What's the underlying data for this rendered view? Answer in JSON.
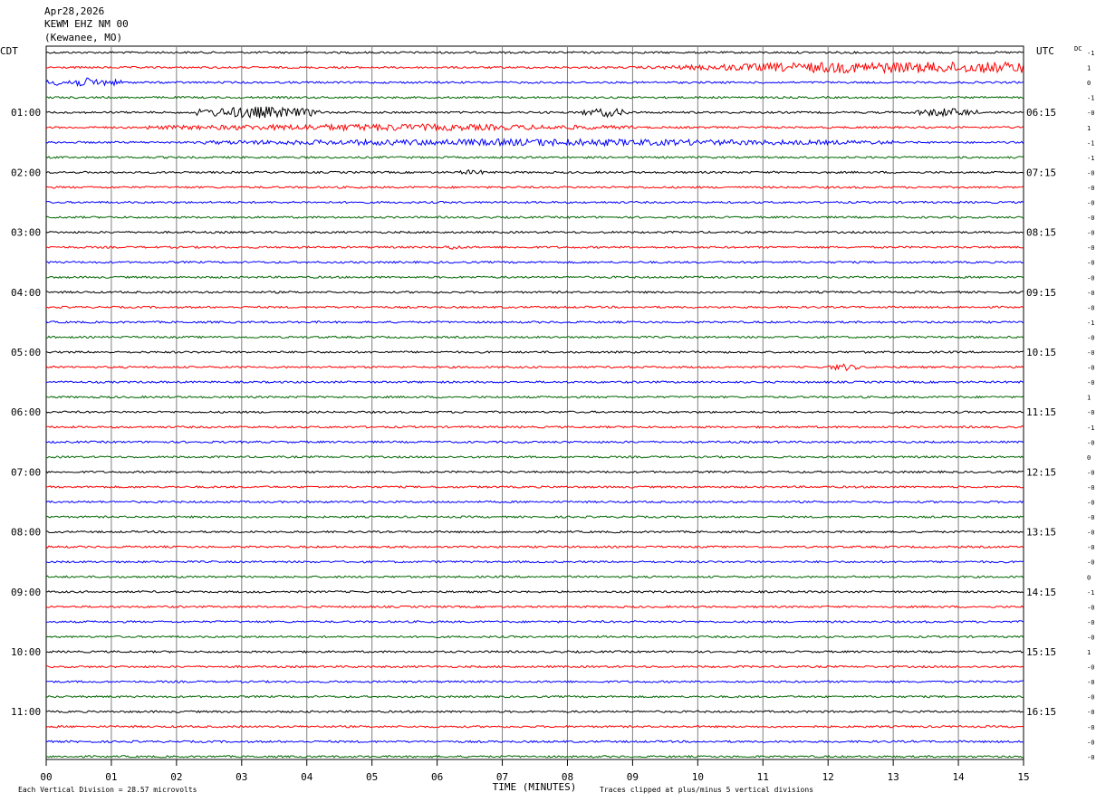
{
  "header": {
    "date": "Apr28,2026",
    "station": "KEWM EHZ NM 00",
    "location": "(Kewanee, MO)"
  },
  "chart_data": {
    "type": "line",
    "left_timezone": "CDT",
    "right_timezone": "UTC",
    "dc_label": "DC",
    "xlabel": "TIME (MINUTES)",
    "x_ticks": [
      "00",
      "01",
      "02",
      "03",
      "04",
      "05",
      "06",
      "07",
      "08",
      "09",
      "10",
      "11",
      "12",
      "13",
      "14",
      "15"
    ],
    "xlim": [
      0,
      15
    ],
    "left_hour_labels": [
      "01:00",
      "02:00",
      "03:00",
      "04:00",
      "05:00",
      "06:00",
      "07:00",
      "08:00",
      "09:00",
      "10:00",
      "11:00"
    ],
    "right_hour_labels": [
      "06:15",
      "07:15",
      "08:15",
      "09:15",
      "10:15",
      "11:15",
      "12:15",
      "13:15",
      "14:15",
      "15:15",
      "16:15"
    ],
    "trace_count": 48,
    "trace_colors": [
      "#000000",
      "#ff0000",
      "#0000ff",
      "#006600"
    ],
    "dc_offsets": [
      "-1",
      "1",
      "0",
      "-1",
      "-0",
      "1",
      "-1",
      "-1",
      "-0",
      "-0",
      "-0",
      "-0",
      "-0",
      "-0",
      "-0",
      "-0",
      "-0",
      "-0",
      "-1",
      "-0",
      "-0",
      "-0",
      "-0",
      "1",
      "-0",
      "-1",
      "-0",
      "0",
      "-0",
      "-0",
      "-0",
      "-0",
      "-0",
      "-0",
      "-0",
      "0",
      "-1",
      "-0",
      "-0",
      "-0",
      "1",
      "-0",
      "-0",
      "-0",
      "-0",
      "-0",
      "-0",
      "-0"
    ],
    "events": [
      {
        "trace": 1,
        "x_start": 9.0,
        "x_end": 15.0,
        "amplitude": 6,
        "note": "strong noise"
      },
      {
        "trace": 2,
        "x_start": 0.0,
        "x_end": 1.2,
        "amplitude": 5
      },
      {
        "trace": 4,
        "x_start": 2.3,
        "x_end": 4.2,
        "amplitude": 7
      },
      {
        "trace": 4,
        "x_start": 8.2,
        "x_end": 9.0,
        "amplitude": 5
      },
      {
        "trace": 4,
        "x_start": 13.3,
        "x_end": 14.3,
        "amplitude": 5
      },
      {
        "trace": 5,
        "x_start": 1.5,
        "x_end": 9.0,
        "amplitude": 4
      },
      {
        "trace": 6,
        "x_start": 2.4,
        "x_end": 13.0,
        "amplitude": 4
      },
      {
        "trace": 8,
        "x_start": 6.3,
        "x_end": 6.8,
        "amplitude": 3
      },
      {
        "trace": 13,
        "x_start": 6.1,
        "x_end": 6.4,
        "amplitude": 3
      },
      {
        "trace": 21,
        "x_start": 12.0,
        "x_end": 12.5,
        "amplitude": 4
      }
    ],
    "footer_left": "Each Vertical Division =   28.57 microvolts",
    "footer_right": "Traces clipped at plus/minus 5 vertical divisions"
  }
}
